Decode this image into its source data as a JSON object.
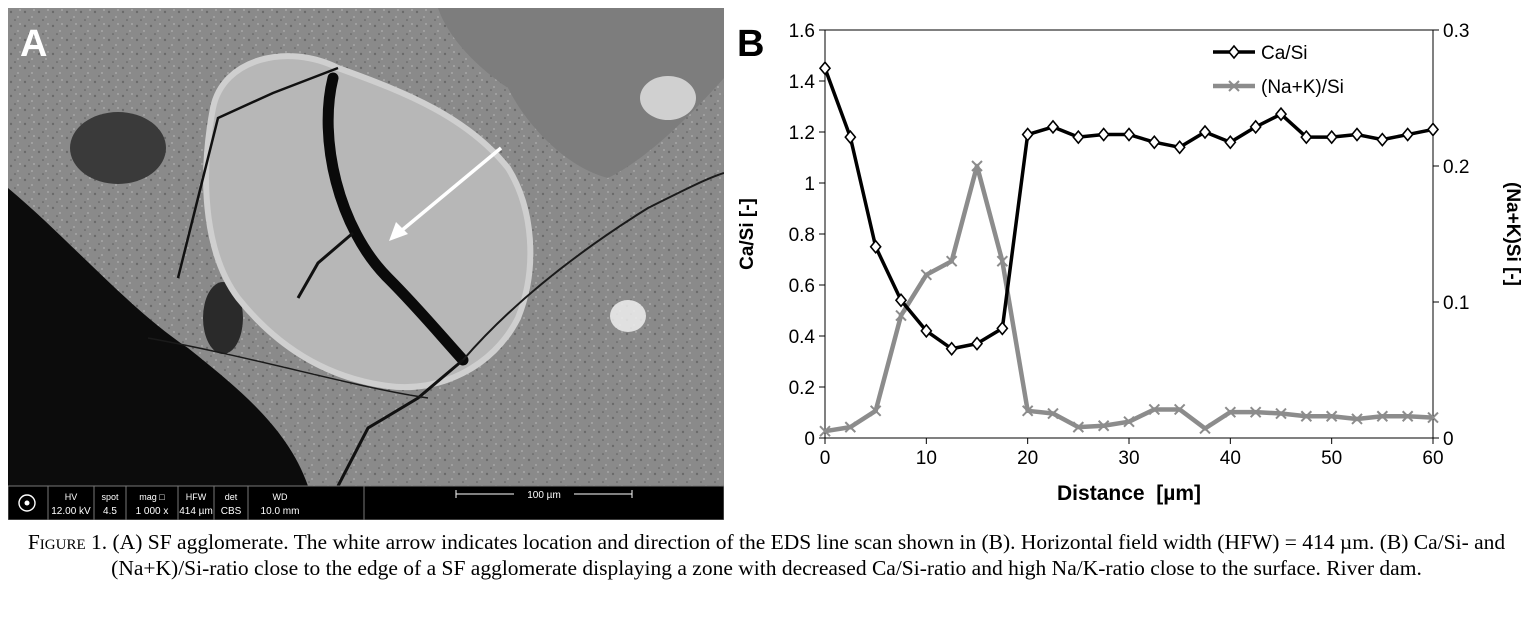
{
  "panel_a": {
    "label": "A",
    "databar": {
      "fields": [
        {
          "name": "HV",
          "value": "12.00 kV"
        },
        {
          "name": "spot",
          "value": "4.5"
        },
        {
          "name": "mag □",
          "value": "1 000 x"
        },
        {
          "name": "HFW",
          "value": "414 µm"
        },
        {
          "name": "det",
          "value": "CBS"
        },
        {
          "name": "WD",
          "value": "10.0 mm"
        }
      ],
      "scale_label": "100 µm"
    }
  },
  "chart_data": {
    "type": "line",
    "panel_label": "B",
    "xlabel": "Distance  [µm]",
    "ylabel": "Ca/Si  [-]",
    "y2label": "(Na+K)Si  [-]",
    "xlim": [
      0,
      60
    ],
    "ylim": [
      0,
      1.6
    ],
    "y2lim": [
      0,
      0.3
    ],
    "x_ticks": [
      "0",
      "10",
      "20",
      "30",
      "40",
      "50",
      "60"
    ],
    "y_ticks": [
      "0",
      "0.2",
      "0.4",
      "0.6",
      "0.8",
      "1",
      "1.2",
      "1.4",
      "1.6"
    ],
    "y2_ticks": [
      "0",
      "0.1",
      "0.2",
      "0.3"
    ],
    "legend_position": "top-right",
    "grid": false,
    "series": [
      {
        "name": "Ca/Si",
        "axis": "left",
        "color": "#000000",
        "marker": "diamond",
        "x": [
          0,
          2.5,
          5,
          7.5,
          10,
          12.5,
          15,
          17.5,
          20,
          22.5,
          25,
          27.5,
          30,
          32.5,
          35,
          37.5,
          40,
          42.5,
          45,
          47.5,
          50,
          52.5,
          55,
          57.5,
          60
        ],
        "values": [
          1.45,
          1.18,
          0.75,
          0.54,
          0.42,
          0.35,
          0.37,
          0.43,
          1.19,
          1.22,
          1.18,
          1.19,
          1.19,
          1.16,
          1.14,
          1.2,
          1.16,
          1.22,
          1.27,
          1.18,
          1.18,
          1.19,
          1.17,
          1.19,
          1.21
        ]
      },
      {
        "name": "(Na+K)/Si",
        "axis": "right",
        "color": "#8c8c8c",
        "marker": "x",
        "x": [
          0,
          2.5,
          5,
          7.5,
          10,
          12.5,
          15,
          17.5,
          20,
          22.5,
          25,
          27.5,
          30,
          32.5,
          35,
          37.5,
          40,
          42.5,
          45,
          47.5,
          50,
          52.5,
          55,
          57.5,
          60
        ],
        "values": [
          0.005,
          0.008,
          0.02,
          0.09,
          0.12,
          0.13,
          0.2,
          0.13,
          0.02,
          0.018,
          0.008,
          0.009,
          0.012,
          0.021,
          0.021,
          0.007,
          0.019,
          0.019,
          0.018,
          0.016,
          0.016,
          0.014,
          0.016,
          0.016,
          0.015
        ]
      }
    ]
  },
  "caption": {
    "figure_label": "Figure 1.",
    "text": " (A) SF agglomerate. The white arrow indicates location and direction of the EDS line scan shown in (B). Horizontal field width (HFW) = 414 µm. (B) Ca/Si- and (Na+K)/Si-ratio close to the edge of a SF agglomerate displaying a zone with decreased Ca/Si-ratio and high Na/K-ratio close to the surface. River dam."
  }
}
